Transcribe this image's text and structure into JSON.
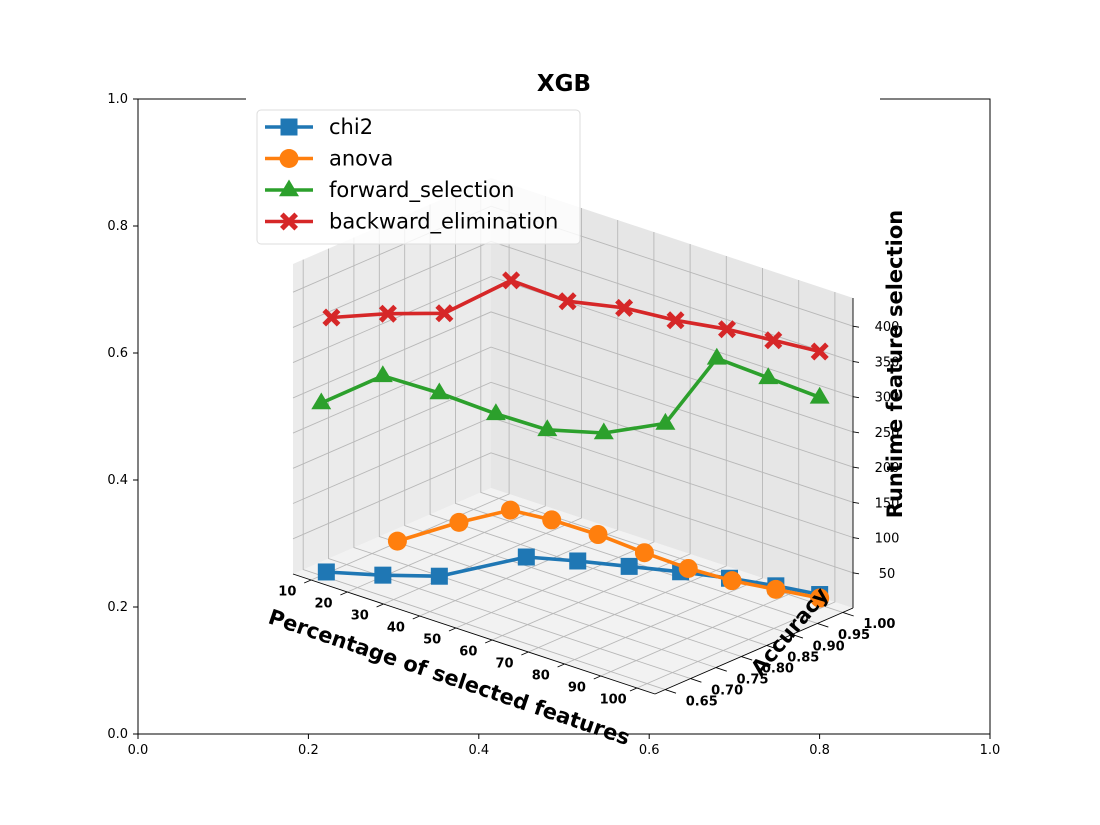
{
  "chart_data": {
    "type": "line",
    "title": "XGB",
    "xlabel": "Percentage of selected features",
    "ylabel": "Accuracy",
    "zlabel": "Runtime feature selection",
    "x_ticks": [
      "10",
      "20",
      "30",
      "40",
      "50",
      "60",
      "70",
      "80",
      "90",
      "100"
    ],
    "y_ticks": [
      "0.65",
      "0.70",
      "0.75",
      "0.80",
      "0.85",
      "0.90",
      "0.95",
      "1.00"
    ],
    "z_ticks": [
      "50",
      "100",
      "150",
      "200",
      "250",
      "300",
      "350",
      "400"
    ],
    "outer_x_ticks": [
      "0.0",
      "0.2",
      "0.4",
      "0.6",
      "0.8",
      "1.0"
    ],
    "outer_y_ticks": [
      "0.0",
      "0.2",
      "0.4",
      "0.6",
      "0.8",
      "1.0"
    ],
    "legend_position": "upper-left",
    "series": [
      {
        "name": "chi2",
        "color": "#1f77b4",
        "marker": "square",
        "x": [
          10,
          20,
          30,
          40,
          50,
          60,
          70,
          80,
          90,
          100
        ],
        "y": [
          0.66,
          0.7,
          0.74,
          0.84,
          0.87,
          0.9,
          0.93,
          0.955,
          0.975,
          0.99
        ],
        "z": [
          2,
          2,
          5,
          18,
          20,
          20,
          20,
          20,
          20,
          20
        ]
      },
      {
        "name": "anova",
        "color": "#ff7f0e",
        "marker": "circle",
        "x": [
          10,
          20,
          30,
          40,
          50,
          60,
          70,
          80,
          90,
          100
        ],
        "y": [
          0.8,
          0.85,
          0.88,
          0.89,
          0.91,
          0.93,
          0.945,
          0.96,
          0.975,
          0.99
        ],
        "z": [
          2,
          30,
          55,
          55,
          45,
          30,
          20,
          15,
          15,
          15
        ]
      },
      {
        "name": "forward_selection",
        "color": "#2ca02c",
        "marker": "triangle",
        "x": [
          10,
          20,
          30,
          40,
          50,
          60,
          70,
          80,
          90,
          100
        ],
        "y": [
          0.65,
          0.7,
          0.74,
          0.78,
          0.81,
          0.85,
          0.9,
          0.93,
          0.96,
          0.99
        ],
        "z": [
          245,
          285,
          265,
          240,
          225,
          225,
          240,
          340,
          320,
          300
        ]
      },
      {
        "name": "backward_elimination",
        "color": "#d62728",
        "marker": "x",
        "x": [
          10,
          20,
          30,
          40,
          50,
          60,
          70,
          80,
          90,
          100
        ],
        "y": [
          0.67,
          0.71,
          0.75,
          0.81,
          0.85,
          0.89,
          0.92,
          0.95,
          0.97,
          0.99
        ],
        "z": [
          360,
          370,
          375,
          420,
          395,
          390,
          380,
          375,
          370,
          365
        ]
      }
    ]
  }
}
